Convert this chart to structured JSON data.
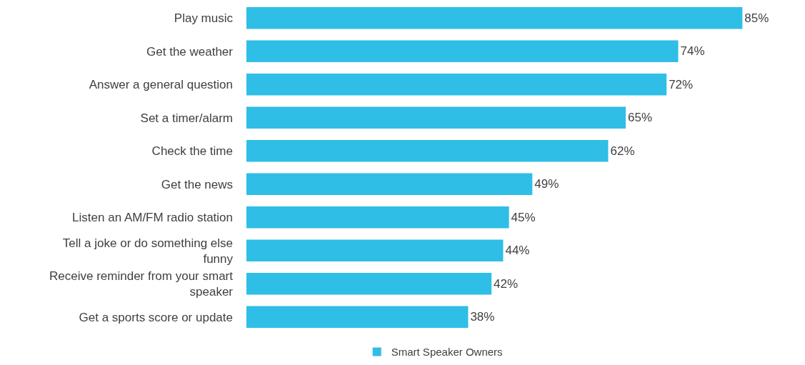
{
  "chart_data": {
    "type": "bar",
    "orientation": "horizontal",
    "categories": [
      "Play music",
      "Get the weather",
      "Answer a general question",
      "Set a timer/alarm",
      "Check the time",
      "Get the news",
      "Listen an AM/FM radio station",
      "Tell a joke or do something else funny",
      "Receive reminder from your smart speaker",
      "Get a sports score or update"
    ],
    "series": [
      {
        "name": "Smart Speaker Owners",
        "color": "#2ebee6",
        "values": [
          85,
          74,
          72,
          65,
          62,
          49,
          45,
          44,
          42,
          38
        ],
        "value_labels": [
          "85%",
          "74%",
          "72%",
          "65%",
          "62%",
          "49%",
          "45%",
          "44%",
          "42%",
          "38%"
        ]
      }
    ],
    "legend": "bottom"
  }
}
